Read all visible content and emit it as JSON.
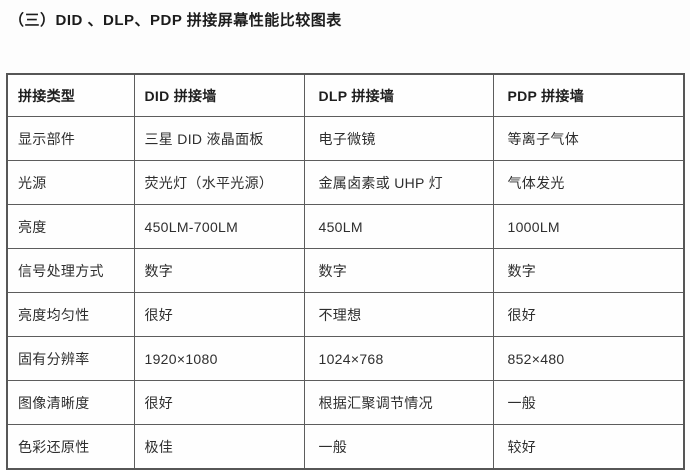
{
  "page": {
    "title": "（三）DID 、DLP、PDP 拼接屏幕性能比较图表"
  },
  "table": {
    "headers": [
      "拼接类型",
      "DID 拼接墙",
      "DLP 拼接墙",
      "PDP 拼接墙"
    ],
    "rows": [
      [
        "显示部件",
        "三星 DID 液晶面板",
        "电子微镜",
        "等离子气体"
      ],
      [
        "光源",
        "荧光灯（水平光源）",
        "金属卤素或 UHP 灯",
        "气体发光"
      ],
      [
        "亮度",
        "450LM-700LM",
        "450LM",
        "1000LM"
      ],
      [
        "信号处理方式",
        "数字",
        "数字",
        "数字"
      ],
      [
        "亮度均匀性",
        "很好",
        "不理想",
        "很好"
      ],
      [
        "固有分辨率",
        "1920×1080",
        "1024×768",
        "852×480"
      ],
      [
        "图像清晰度",
        "很好",
        "根据汇聚调节情况",
        "一般"
      ],
      [
        "色彩还原性",
        "极佳",
        "一般",
        "较好"
      ]
    ],
    "colors": {
      "border": "#5c5c5c",
      "text": "#2e2e2e",
      "background": "#fdfdfd"
    }
  }
}
